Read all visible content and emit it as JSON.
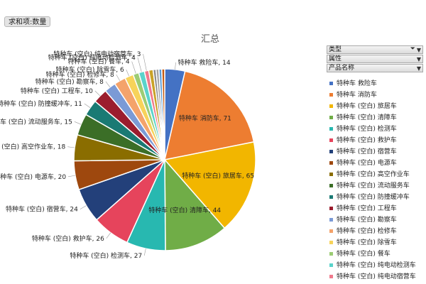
{
  "field_button": "求和项:数量",
  "filters": [
    {
      "label": "类型",
      "has_filter_icon": true
    },
    {
      "label": "属性",
      "has_filter_icon": false
    },
    {
      "label": "产品名称",
      "has_filter_icon": false
    }
  ],
  "chart_data": {
    "type": "pie",
    "title": "汇总",
    "slices": [
      {
        "label": "特种车 救险车",
        "value": 14,
        "color": "#4472c4"
      },
      {
        "label": "特种车 消防车",
        "value": 71,
        "color": "#ed7d31"
      },
      {
        "label": "特种车 (空白) 旅居车",
        "value": 65,
        "color": "#f2b600"
      },
      {
        "label": "特种车 (空白) 清障车",
        "value": 44,
        "color": "#70ad47"
      },
      {
        "label": "特种车 (空白) 检测车",
        "value": 27,
        "color": "#28b8b0"
      },
      {
        "label": "特种车 (空白) 救护车",
        "value": 26,
        "color": "#e6445c"
      },
      {
        "label": "特种车 (空白) 宿营车",
        "value": 24,
        "color": "#23407a"
      },
      {
        "label": "特种车 (空白) 电源车",
        "value": 20,
        "color": "#9e480e"
      },
      {
        "label": "特种车 (空白) 高空作业车",
        "value": 18,
        "color": "#8a6d00"
      },
      {
        "label": "特种车 (空白) 流动服务车",
        "value": 15,
        "color": "#3b6e27"
      },
      {
        "label": "特种车 (空白) 防撞缓冲车",
        "value": 11,
        "color": "#1a7a74"
      },
      {
        "label": "特种车 (空白) 工程车",
        "value": 10,
        "color": "#9b1d2e"
      },
      {
        "label": "特种车 (空白) 勘察车",
        "value": 8,
        "color": "#7b9ad6"
      },
      {
        "label": "特种车 (空白) 检修车",
        "value": 8,
        "color": "#f4a36b"
      },
      {
        "label": "特种车 (空白) 除雪车",
        "value": 6,
        "color": "#f7d35a"
      },
      {
        "label": "特种车 (空白) 餐车",
        "value": 4,
        "color": "#9ccc74"
      },
      {
        "label": "特种车 (空白) 纯电动检测车",
        "value": 4,
        "color": "#5ad3cb"
      },
      {
        "label": "特种车 (空白) 纯电动宿营车",
        "value": 3,
        "color": "#f07a8c"
      },
      {
        "label": "",
        "value": 3,
        "color": "#c9a227"
      },
      {
        "label": "",
        "value": 2,
        "color": "#8c8c8c"
      },
      {
        "label": "",
        "value": 2,
        "color": "#a5a5a5"
      },
      {
        "label": "",
        "value": 2,
        "color": "#5b9bd5"
      },
      {
        "label": "",
        "value": 2,
        "color": "#c55a11"
      }
    ],
    "legend_entries": [
      "特种车 救险车",
      "特种车 消防车",
      "特种车 (空白) 旅居车",
      "特种车 (空白) 清障车",
      "特种车 (空白) 检测车",
      "特种车 (空白) 救护车",
      "特种车 (空白) 宿营车",
      "特种车 (空白) 电源车",
      "特种车 (空白) 高空作业车",
      "特种车 (空白) 流动服务车",
      "特种车 (空白) 防撞缓冲车",
      "特种车 (空白) 工程车",
      "特种车 (空白) 勘察车",
      "特种车 (空白) 检修车",
      "特种车 (空白) 除雪车",
      "特种车 (空白) 餐车",
      "特种车 (空白) 纯电动检测车",
      "特种车 (空白) 纯电动宿营车"
    ],
    "legend_placement": "right"
  }
}
